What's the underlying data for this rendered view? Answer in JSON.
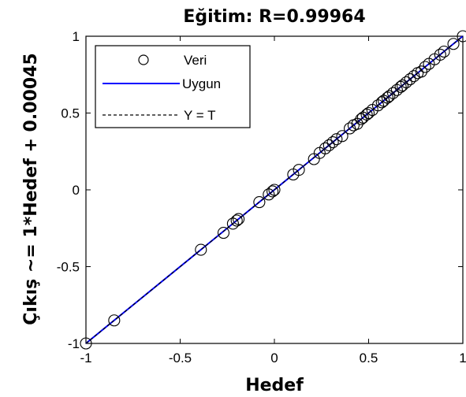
{
  "chart_data": {
    "type": "scatter",
    "title": "Eğitim: R=0.99964",
    "xlabel": "Hedef",
    "ylabel": "Çıkış ~= 1*Hedef + 0.00045",
    "xlim": [
      -1,
      1
    ],
    "ylim": [
      -1,
      1
    ],
    "xticks": [
      -1,
      -0.5,
      0,
      0.5,
      1
    ],
    "yticks": [
      -1,
      -0.5,
      0,
      0.5,
      1
    ],
    "xtick_labels": [
      "-1",
      "-0.5",
      "0",
      "0.5",
      "1"
    ],
    "ytick_labels": [
      "-1",
      "-0.5",
      "0",
      "0.5",
      "1"
    ],
    "grid": false,
    "legend_position": "top-left",
    "series": [
      {
        "name": "Veri",
        "kind": "markers",
        "marker": "circle",
        "color": "#000000",
        "points": [
          [
            -1.0,
            -1.0
          ],
          [
            -0.85,
            -0.85
          ],
          [
            -0.39,
            -0.39
          ],
          [
            -0.27,
            -0.28
          ],
          [
            -0.22,
            -0.22
          ],
          [
            -0.2,
            -0.2
          ],
          [
            -0.19,
            -0.19
          ],
          [
            -0.08,
            -0.08
          ],
          [
            -0.03,
            -0.03
          ],
          [
            -0.01,
            -0.01
          ],
          [
            0.0,
            0.0
          ],
          [
            0.1,
            0.1
          ],
          [
            0.13,
            0.13
          ],
          [
            0.21,
            0.2
          ],
          [
            0.24,
            0.24
          ],
          [
            0.27,
            0.27
          ],
          [
            0.29,
            0.29
          ],
          [
            0.31,
            0.31
          ],
          [
            0.33,
            0.33
          ],
          [
            0.36,
            0.35
          ],
          [
            0.4,
            0.4
          ],
          [
            0.42,
            0.42
          ],
          [
            0.44,
            0.43
          ],
          [
            0.46,
            0.46
          ],
          [
            0.47,
            0.47
          ],
          [
            0.49,
            0.49
          ],
          [
            0.5,
            0.5
          ],
          [
            0.52,
            0.52
          ],
          [
            0.55,
            0.55
          ],
          [
            0.57,
            0.57
          ],
          [
            0.58,
            0.58
          ],
          [
            0.6,
            0.6
          ],
          [
            0.61,
            0.61
          ],
          [
            0.63,
            0.63
          ],
          [
            0.65,
            0.65
          ],
          [
            0.67,
            0.67
          ],
          [
            0.68,
            0.68
          ],
          [
            0.7,
            0.7
          ],
          [
            0.72,
            0.72
          ],
          [
            0.74,
            0.74
          ],
          [
            0.76,
            0.76
          ],
          [
            0.78,
            0.77
          ],
          [
            0.8,
            0.8
          ],
          [
            0.82,
            0.82
          ],
          [
            0.85,
            0.85
          ],
          [
            0.88,
            0.88
          ],
          [
            0.9,
            0.9
          ],
          [
            0.95,
            0.95
          ],
          [
            1.0,
            1.0
          ]
        ]
      },
      {
        "name": "Uygun",
        "kind": "line",
        "color": "#0000ff",
        "slope": 1,
        "intercept": 0.00045
      },
      {
        "name": "Y = T",
        "kind": "line",
        "style": "dashed",
        "color": "#000000",
        "slope": 1,
        "intercept": 0
      }
    ]
  }
}
